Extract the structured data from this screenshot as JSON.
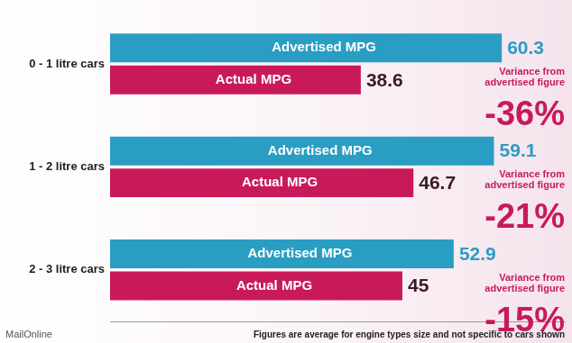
{
  "chart_data": {
    "type": "bar",
    "orientation": "horizontal",
    "categories": [
      "0 - 1 litre cars",
      "1 - 2 litre cars",
      "2 - 3 litre cars"
    ],
    "series": [
      {
        "name": "Advertised MPG",
        "color": "#2a9dc3",
        "values": [
          60.3,
          59.1,
          52.9
        ]
      },
      {
        "name": "Actual MPG",
        "color": "#c81a5b",
        "values": [
          38.6,
          46.7,
          45
        ]
      }
    ],
    "xlim": [
      0,
      70
    ],
    "grid": false,
    "tick_labels": "y",
    "data_labels": true,
    "variance": {
      "title": "Variance from advertised figure",
      "values": [
        -36,
        -21,
        -15
      ],
      "value_labels": [
        "-36%",
        "-21%",
        "-15%"
      ]
    },
    "footnote": "Figures are average for engine types size and not specific to cars shown",
    "source": "MailOnline"
  }
}
